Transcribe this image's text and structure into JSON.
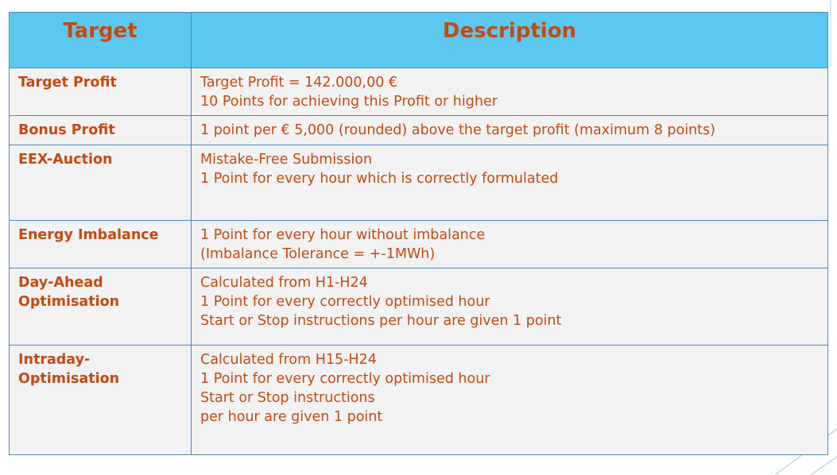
{
  "table": {
    "headers": {
      "target": "Target",
      "description": "Description"
    },
    "rows": [
      {
        "target": [
          "Target Profit"
        ],
        "description": [
          "Target Profit = 142.000,00 €",
          "10 Points for achieving this Profit or higher"
        ]
      },
      {
        "target": [
          "Bonus Profit"
        ],
        "description": [
          "1 point per € 5,000 (rounded) above the target profit (maximum 8 points)"
        ]
      },
      {
        "target": [
          "EEX-Auction"
        ],
        "description": [
          "Mistake-Free Submission",
          "1 Point for every hour which is correctly formulated"
        ]
      },
      {
        "target": [
          "Energy Imbalance"
        ],
        "description": [
          "1 Point for every hour without imbalance",
          "(Imbalance Tolerance = +-1MWh)"
        ]
      },
      {
        "target": [
          "Day-Ahead",
          "Optimisation"
        ],
        "description": [
          "Calculated from H1-H24",
          "1 Point for every correctly optimised hour",
          "Start or Stop instructions per hour are given 1 point"
        ]
      },
      {
        "target": [
          "Intraday-",
          "Optimisation"
        ],
        "description": [
          "Calculated from H15-H24",
          "1 Point for every correctly optimised hour",
          "Start or Stop instructions",
          "per hour are given 1 point"
        ]
      }
    ]
  },
  "colors": {
    "header_bg": "#5bc8ef",
    "body_bg": "#f2f2f2",
    "text": "#c34a12",
    "border": "#4a86c6"
  }
}
